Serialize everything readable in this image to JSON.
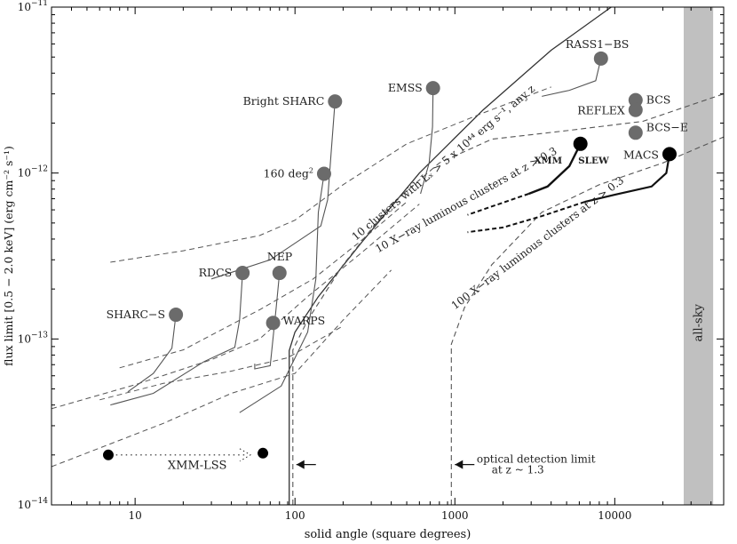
{
  "chart_data": {
    "type": "scatter",
    "title": "",
    "xlabel": "solid angle (square degrees)",
    "ylabel": "flux limit [0.5 − 2.0 keV] (erg cm⁻² s⁻¹)",
    "x_scale": "log",
    "y_scale": "log",
    "xlim": [
      3,
      48000
    ],
    "ylim": [
      1e-14,
      1e-11
    ],
    "x_ticks": [
      {
        "value": 10,
        "label": "10"
      },
      {
        "value": 100,
        "label": "100"
      },
      {
        "value": 1000,
        "label": "1000"
      },
      {
        "value": 10000,
        "label": "10000"
      }
    ],
    "y_ticks": [
      {
        "value": 1e-14,
        "base": "10",
        "exp": "−14"
      },
      {
        "value": 1e-13,
        "base": "10",
        "exp": "−13"
      },
      {
        "value": 1e-12,
        "base": "10",
        "exp": "−12"
      },
      {
        "value": 1e-11,
        "base": "10",
        "exp": "−11"
      }
    ],
    "colors": {
      "gray_survey": "#6b6b6b",
      "black_survey": "#000000",
      "allsky_band": "#c0c0c0",
      "curve": "#555555"
    },
    "surveys": [
      {
        "name": "RASS1−BS",
        "x": 8200,
        "y": 4.9e-12,
        "color": "gray",
        "label_pos": "above"
      },
      {
        "name": "EMSS",
        "x": 730,
        "y": 3.25e-12,
        "color": "gray",
        "label_pos": "left"
      },
      {
        "name": "Bright SHARC",
        "x": 178,
        "y": 2.7e-12,
        "color": "gray",
        "label_pos": "left"
      },
      {
        "name": "BCS",
        "x": 13500,
        "y": 2.75e-12,
        "color": "gray",
        "label_pos": "right"
      },
      {
        "name": "REFLEX",
        "x": 13500,
        "y": 2.4e-12,
        "color": "gray",
        "label_pos": "left"
      },
      {
        "name": "BCS−E",
        "x": 13500,
        "y": 1.75e-12,
        "color": "gray",
        "label_pos": "right"
      },
      {
        "name": "160 deg²",
        "x": 152,
        "y": 9.9e-13,
        "color": "gray",
        "label_pos": "left"
      },
      {
        "name": "MACS",
        "x": 22000,
        "y": 1.3e-12,
        "color": "black",
        "label_pos": "left"
      },
      {
        "name": "XMM SLEW",
        "x": 6100,
        "y": 1.5e-12,
        "color": "black",
        "label_pos": "below"
      },
      {
        "name": "RDCS",
        "x": 47,
        "y": 2.5e-13,
        "color": "gray",
        "label_pos": "left"
      },
      {
        "name": "NEP",
        "x": 80,
        "y": 2.5e-13,
        "color": "gray",
        "label_pos": "above"
      },
      {
        "name": "WARPS",
        "x": 73,
        "y": 1.25e-13,
        "color": "gray",
        "label_pos": "right"
      },
      {
        "name": "SHARC−S",
        "x": 18,
        "y": 1.4e-13,
        "color": "gray",
        "label_pos": "left"
      },
      {
        "name": "XMM-LSS start",
        "x": 6.8,
        "y": 2e-14,
        "color": "black",
        "label_pos": "none"
      },
      {
        "name": "XMM-LSS goal",
        "x": 63,
        "y": 2.05e-14,
        "color": "black",
        "label_pos": "none"
      }
    ],
    "annotations": {
      "xmm_lss": "XMM-LSS",
      "all_sky": "all-sky",
      "optical_limit_line1": "optical detection limit",
      "optical_limit_line2": "at z ~ 1.3",
      "curve_10_lx": "10 clusters with Lₓ > 5 x 10⁴⁴ erg s⁻¹, any z",
      "curve_10_z03": "10 X−ray luminous clusters at z > 0.3",
      "curve_100_z03": "100 X−ray luminous clusters at z > 0.3"
    }
  }
}
